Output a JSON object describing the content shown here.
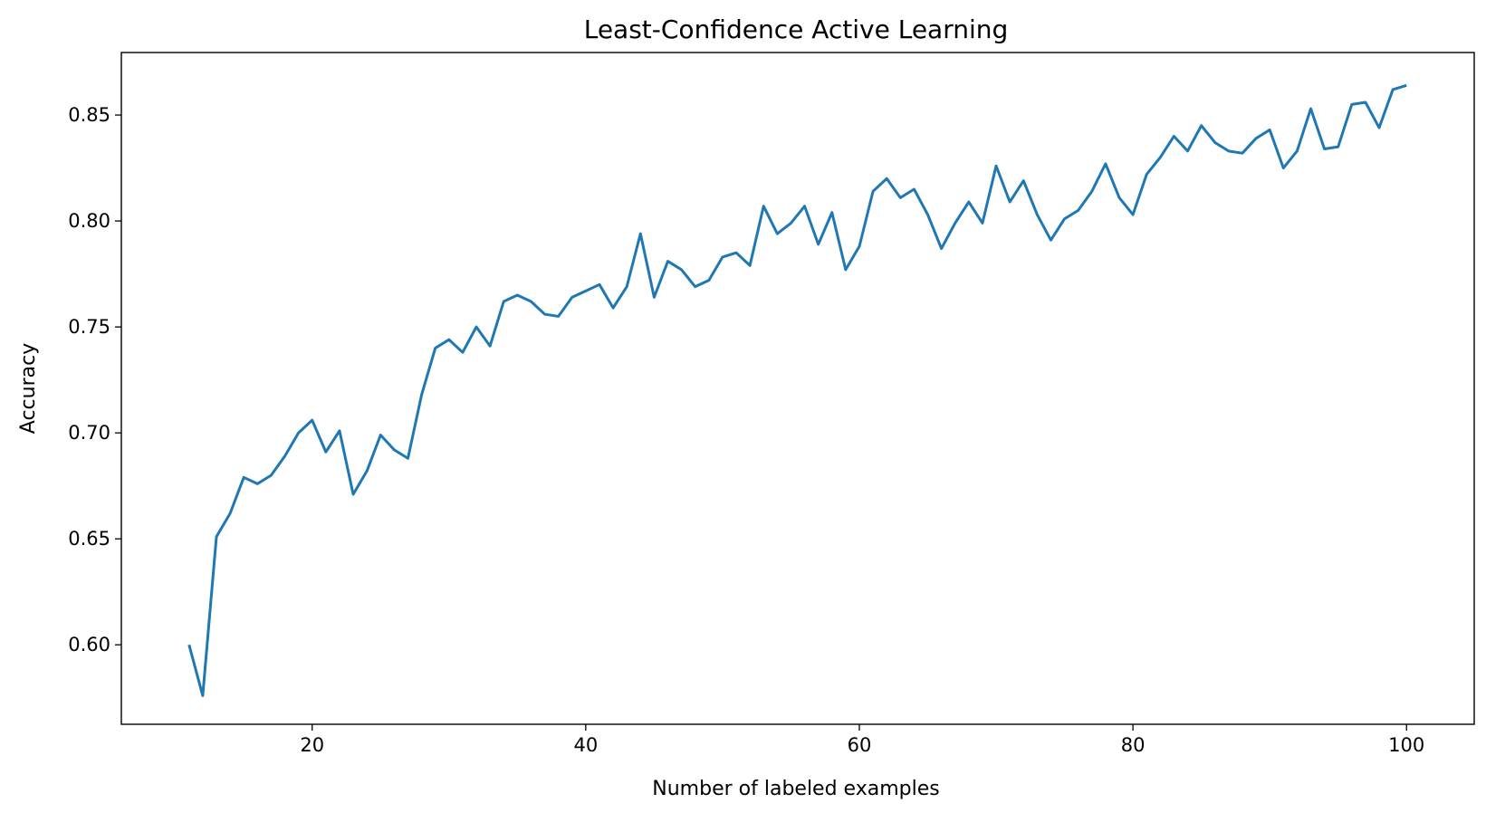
{
  "chart_data": {
    "type": "line",
    "title": "Least-Confidence Active Learning",
    "xlabel": "Number of labeled examples",
    "ylabel": "Accuracy",
    "xlim": [
      6.05,
      104.95
    ],
    "ylim": [
      0.5625,
      0.8795
    ],
    "xticks": [
      20,
      40,
      60,
      80,
      100
    ],
    "yticks": [
      0.6,
      0.65,
      0.7,
      0.75,
      0.8,
      0.85
    ],
    "xtick_labels": [
      "20",
      "40",
      "60",
      "80",
      "100"
    ],
    "ytick_labels": [
      "0.60",
      "0.65",
      "0.70",
      "0.75",
      "0.80",
      "0.85"
    ],
    "grid": false,
    "series": [
      {
        "color": "#1f77b4",
        "x": [
          11,
          12,
          13,
          14,
          15,
          16,
          17,
          18,
          19,
          20,
          21,
          22,
          23,
          24,
          25,
          26,
          27,
          28,
          29,
          30,
          31,
          32,
          33,
          34,
          35,
          36,
          37,
          38,
          39,
          40,
          41,
          42,
          43,
          44,
          45,
          46,
          47,
          48,
          49,
          50,
          51,
          52,
          53,
          54,
          55,
          56,
          57,
          58,
          59,
          60,
          61,
          62,
          63,
          64,
          65,
          66,
          67,
          68,
          69,
          70,
          71,
          72,
          73,
          74,
          75,
          76,
          77,
          78,
          79,
          80,
          81,
          82,
          83,
          84,
          85,
          86,
          87,
          88,
          89,
          90,
          91,
          92,
          93,
          94,
          95,
          96,
          97,
          98,
          99,
          100
        ],
        "y": [
          0.6,
          0.576,
          0.651,
          0.662,
          0.679,
          0.676,
          0.68,
          0.689,
          0.7,
          0.706,
          0.691,
          0.701,
          0.671,
          0.682,
          0.699,
          0.692,
          0.688,
          0.718,
          0.74,
          0.744,
          0.738,
          0.75,
          0.741,
          0.762,
          0.765,
          0.762,
          0.756,
          0.755,
          0.764,
          0.767,
          0.77,
          0.759,
          0.769,
          0.794,
          0.764,
          0.781,
          0.777,
          0.769,
          0.772,
          0.783,
          0.785,
          0.779,
          0.807,
          0.794,
          0.799,
          0.807,
          0.789,
          0.804,
          0.777,
          0.788,
          0.814,
          0.82,
          0.811,
          0.815,
          0.803,
          0.787,
          0.799,
          0.809,
          0.799,
          0.826,
          0.809,
          0.819,
          0.803,
          0.791,
          0.801,
          0.805,
          0.814,
          0.827,
          0.811,
          0.803,
          0.822,
          0.83,
          0.84,
          0.833,
          0.845,
          0.837,
          0.833,
          0.832,
          0.839,
          0.843,
          0.825,
          0.833,
          0.853,
          0.834,
          0.835,
          0.855,
          0.856,
          0.844,
          0.862,
          0.864
        ]
      }
    ]
  }
}
